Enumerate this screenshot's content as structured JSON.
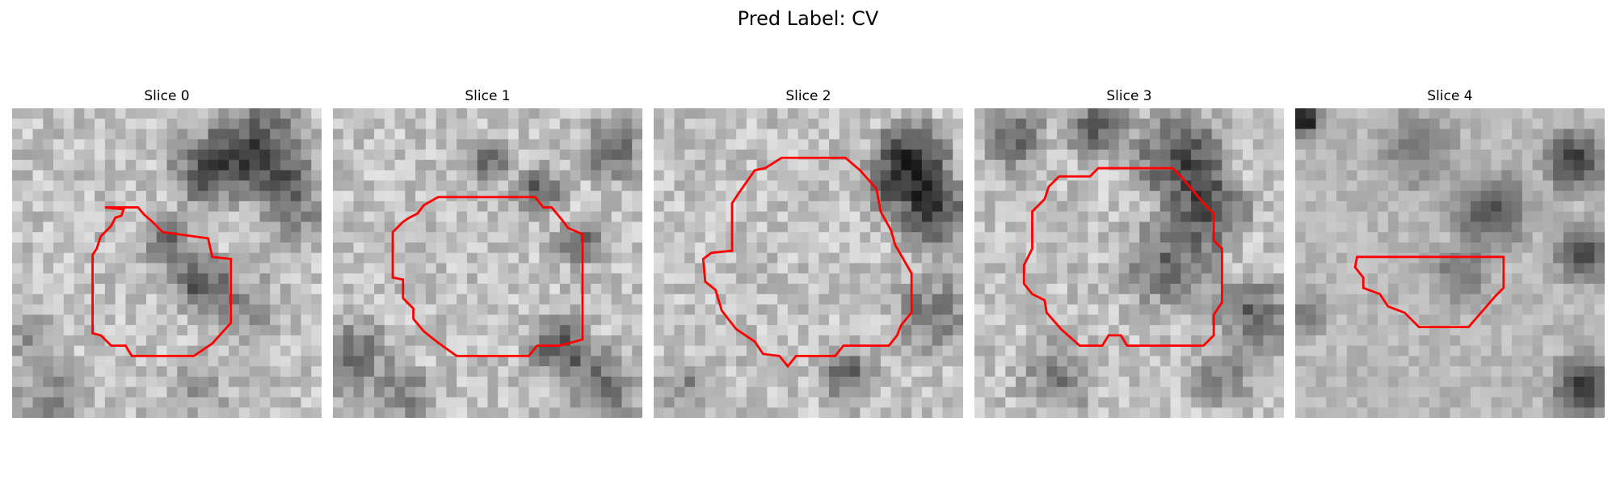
{
  "figure": {
    "title": "Pred Label: CV"
  },
  "panels": [
    {
      "title": "Slice 0"
    },
    {
      "title": "Slice 1"
    },
    {
      "title": "Slice 2"
    },
    {
      "title": "Slice 3"
    },
    {
      "title": "Slice 4"
    }
  ],
  "colors": {
    "contour": "#ff0000",
    "background": "#ffffff"
  }
}
